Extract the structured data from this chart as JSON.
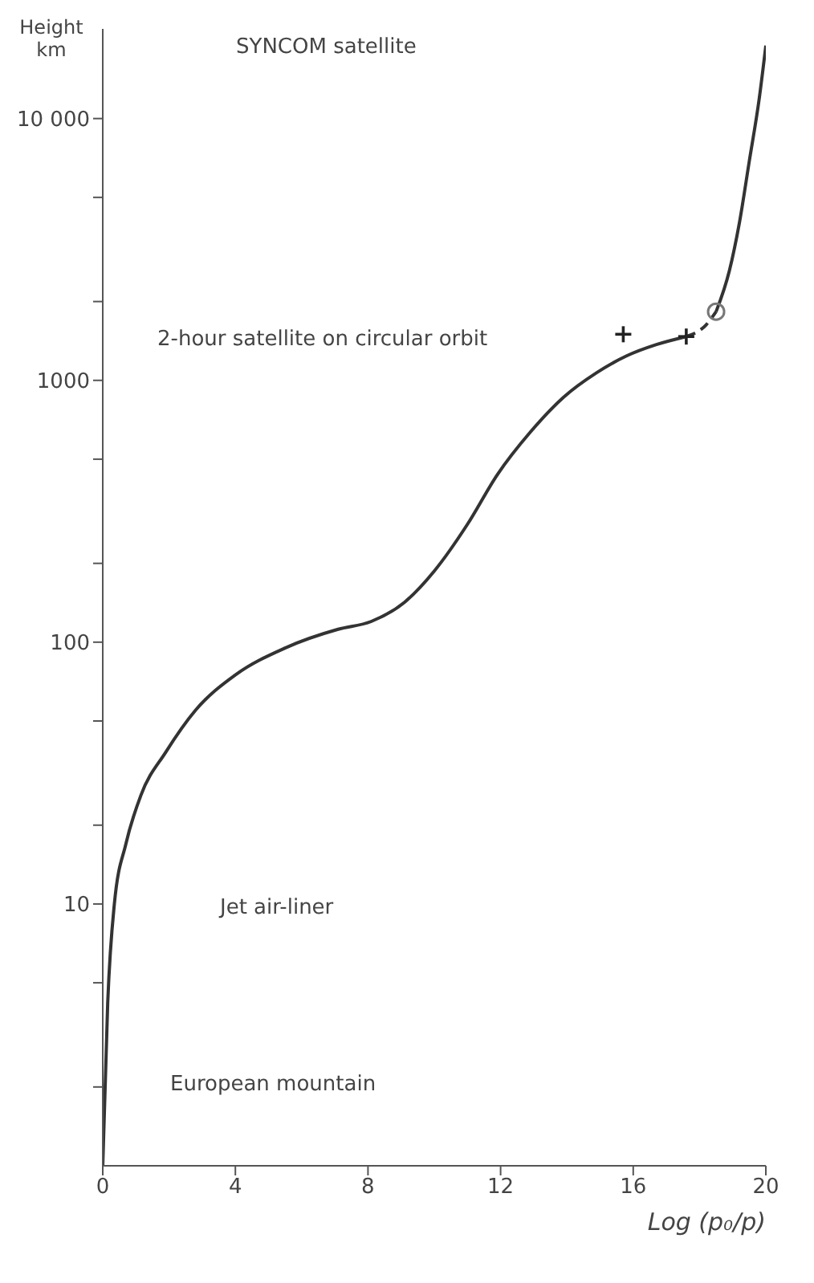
{
  "chart_data": {
    "type": "line",
    "xlabel": "Log (p₀/p)",
    "ylabel": "Height km",
    "log": "y",
    "xlim": [
      0,
      20
    ],
    "xticks": [
      0,
      4,
      8,
      12,
      16,
      20
    ],
    "ylim": [
      1,
      22000
    ],
    "yticks": [
      {
        "value": 2,
        "label": null
      },
      {
        "value": 5,
        "label": null
      },
      10,
      {
        "value": 20,
        "label": null
      },
      {
        "value": 50,
        "label": null
      },
      100,
      {
        "value": 200,
        "label": null
      },
      {
        "value": 500,
        "label": null
      },
      1000,
      {
        "value": 2000,
        "label": null
      },
      {
        "value": 5000,
        "label": null
      },
      {
        "value": 10000,
        "label": "10 000"
      }
    ],
    "series": [
      {
        "type": "line",
        "color": "#333333",
        "line_style": "solid",
        "marker": "none",
        "x": [
          0,
          0.15,
          0.35,
          0.7,
          1.15,
          1.9,
          2.8,
          4.0,
          5.5,
          7.1,
          8.1,
          9.1,
          10.0,
          11.0,
          11.9,
          12.9,
          13.9,
          14.9,
          15.8,
          16.7,
          17.6
        ],
        "values": [
          1,
          4.2,
          10,
          17,
          26,
          38,
          55,
          75,
          95,
          112,
          120,
          142,
          187,
          282,
          436,
          635,
          862,
          1070,
          1240,
          1370,
          1470
        ]
      },
      {
        "type": "line",
        "color": "#333333",
        "line_style": "dashed",
        "marker": "none",
        "x": [
          17.6,
          18.2,
          18.5
        ],
        "values": [
          1470,
          1630,
          1830
        ]
      },
      {
        "type": "line",
        "color": "#333333",
        "line_style": "solid",
        "marker": "none",
        "x": [
          18.5,
          18.9,
          19.2,
          19.5,
          19.8,
          20.0
        ],
        "values": [
          1830,
          2620,
          3980,
          6860,
          11900,
          19000
        ]
      },
      {
        "type": "scatter",
        "color": "#222222",
        "marker": "cross",
        "x": [
          15.7,
          17.6
        ],
        "values": [
          1500,
          1470
        ]
      },
      {
        "type": "scatter",
        "color": "#777777",
        "marker": "circle",
        "x": [
          18.5
        ],
        "values": [
          1830
        ]
      }
    ],
    "annotations": [
      "SYNCOM satellite",
      "2-hour satellite on circular orbit",
      "Jet air-liner",
      "European mountain"
    ]
  }
}
